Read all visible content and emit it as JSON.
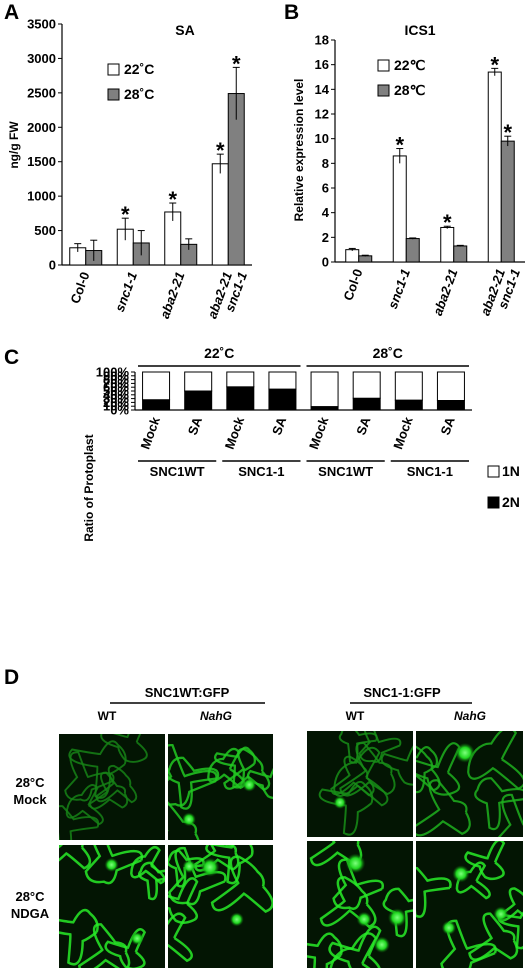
{
  "panels": {
    "A": "A",
    "B": "B",
    "C": "C",
    "D": "D"
  },
  "chart_data": [
    {
      "type": "bar",
      "panel": "A",
      "title": "SA",
      "ylabel": "ng/g FW",
      "ylim": [
        0,
        3500
      ],
      "yticks": [
        0,
        500,
        1000,
        1500,
        2000,
        2500,
        3000,
        3500
      ],
      "ytick_labels": [
        "0",
        "500",
        "1000",
        "1500",
        "2000",
        "2500",
        "3000",
        "3500"
      ],
      "categories": [
        "Col-0",
        "snc1-1",
        "aba2-21",
        "aba2-21 snc1-1"
      ],
      "category_lines": [
        [
          "Col-0"
        ],
        [
          "snc1-1"
        ],
        [
          "aba2-21"
        ],
        [
          "aba2-21",
          "snc1-1"
        ]
      ],
      "series": [
        {
          "name": "22˚C",
          "color": "#ffffff",
          "values": [
            250,
            520,
            770,
            1470
          ],
          "errors": [
            60,
            160,
            130,
            140
          ],
          "significant": [
            false,
            true,
            true,
            true
          ]
        },
        {
          "name": "28˚C",
          "color": "#808080",
          "values": [
            210,
            320,
            300,
            2490
          ],
          "errors": [
            150,
            180,
            80,
            380
          ],
          "significant": [
            false,
            false,
            false,
            true
          ]
        }
      ],
      "legend_position": "top-left"
    },
    {
      "type": "bar",
      "panel": "B",
      "title": "ICS1",
      "ylabel": "Relative expression level",
      "ylim": [
        0,
        18
      ],
      "yticks": [
        0,
        2,
        4,
        6,
        8,
        10,
        12,
        14,
        16,
        18
      ],
      "ytick_labels": [
        "0",
        "2",
        "4",
        "6",
        "8",
        "10",
        "12",
        "14",
        "16",
        "18"
      ],
      "categories": [
        "Col-0",
        "snc1-1",
        "aba2-21",
        "aba2-21 snc1-1"
      ],
      "category_lines": [
        [
          "Col-0"
        ],
        [
          "snc1-1"
        ],
        [
          "aba2-21"
        ],
        [
          "aba2-21",
          "snc1-1"
        ]
      ],
      "series": [
        {
          "name": "22℃",
          "color": "#ffffff",
          "values": [
            1.0,
            8.6,
            2.8,
            15.4
          ],
          "errors": [
            0.1,
            0.6,
            0.1,
            0.3
          ],
          "significant": [
            false,
            true,
            true,
            true
          ]
        },
        {
          "name": "28℃",
          "color": "#808080",
          "values": [
            0.5,
            1.9,
            1.3,
            9.8
          ],
          "errors": [
            0.05,
            0.05,
            0.05,
            0.4
          ],
          "significant": [
            false,
            false,
            false,
            true
          ]
        }
      ],
      "legend_position": "top-left"
    },
    {
      "type": "bar",
      "stacked": true,
      "panel": "C",
      "ylabel": "Ratio of Protoplast",
      "ylim": [
        0,
        100
      ],
      "yticks": [
        0,
        10,
        20,
        30,
        40,
        50,
        60,
        70,
        80,
        90,
        100
      ],
      "ytick_labels": [
        "0%",
        "10%",
        "20%",
        "30%",
        "40%",
        "50%",
        "60%",
        "70%",
        "80%",
        "90%",
        "100%"
      ],
      "categories": [
        "Mock",
        "SA",
        "Mock",
        "SA",
        "Mock",
        "SA",
        "Mock",
        "SA"
      ],
      "genotype_groups": [
        {
          "label": "SNC1WT",
          "start": 0,
          "end": 1
        },
        {
          "label": "SNC1-1",
          "start": 2,
          "end": 3
        },
        {
          "label": "SNC1WT",
          "start": 4,
          "end": 5
        },
        {
          "label": "SNC1-1",
          "start": 6,
          "end": 7
        }
      ],
      "temperature_groups": [
        {
          "label": "22˚C",
          "start": 0,
          "end": 3
        },
        {
          "label": "28˚C",
          "start": 4,
          "end": 7
        }
      ],
      "series": [
        {
          "name": "2N",
          "color": "#000000",
          "values": [
            27,
            50,
            61,
            55,
            9,
            31,
            26,
            25
          ]
        },
        {
          "name": "1N",
          "color": "#ffffff",
          "values": [
            73,
            50,
            39,
            45,
            91,
            69,
            74,
            75
          ]
        }
      ],
      "legend": [
        {
          "name": "1N",
          "color": "#ffffff"
        },
        {
          "name": "2N",
          "color": "#000000"
        }
      ],
      "legend_position": "right"
    }
  ],
  "microscopy": {
    "constructs": [
      "SNC1WT:GFP",
      "SNC1-1:GFP"
    ],
    "columns": [
      "WT",
      "NahG",
      "WT",
      "NahG"
    ],
    "rows": [
      {
        "line1": "28°C",
        "line2": "Mock"
      },
      {
        "line1": "28°C",
        "line2": "NDGA"
      }
    ]
  }
}
